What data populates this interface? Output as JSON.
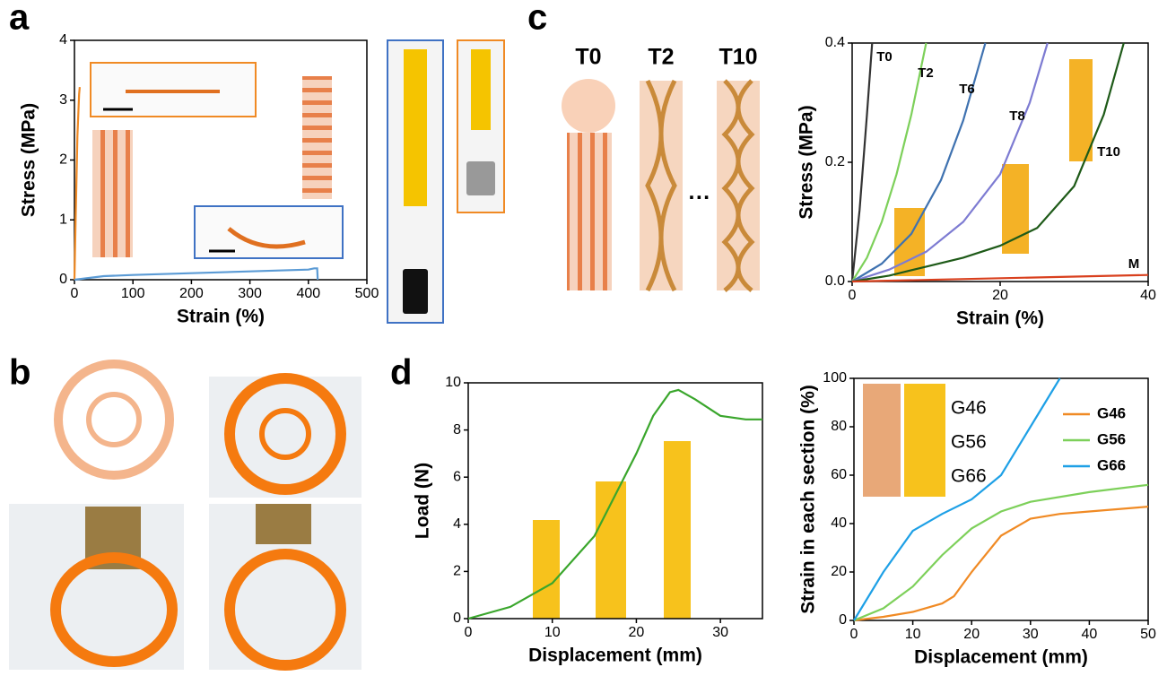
{
  "panel_labels": [
    "a",
    "b",
    "c",
    "d"
  ],
  "schematic_labels": [
    "T0",
    "T2",
    "T10"
  ],
  "ellipsis": "···",
  "inset_labels": [
    "G46",
    "G56",
    "G66"
  ],
  "chart_data": [
    {
      "type": "line",
      "xlabel": "Strain (%)",
      "ylabel": "Stress (MPa)",
      "xlim": [
        0,
        500
      ],
      "xticks": [
        0,
        100,
        200,
        300,
        400,
        500
      ],
      "ylim": [
        0,
        4
      ],
      "yticks": [
        0,
        1,
        2,
        3,
        4
      ],
      "series": [
        {
          "color": "#f08a24",
          "x": [
            0,
            2,
            5,
            8,
            9
          ],
          "values": [
            0,
            1.0,
            2.4,
            3.1,
            3.22
          ]
        },
        {
          "color": "#5b9bd5",
          "x": [
            0,
            50,
            100,
            200,
            300,
            400,
            410,
            415,
            416
          ],
          "values": [
            0,
            0.06,
            0.08,
            0.11,
            0.14,
            0.17,
            0.19,
            0.19,
            0
          ]
        }
      ]
    },
    {
      "type": "line",
      "xlabel": "Strain (%)",
      "ylabel": "Stress (MPa)",
      "xlim": [
        0,
        40
      ],
      "xticks": [
        0,
        20,
        40
      ],
      "ylim": [
        0,
        0.4
      ],
      "yticks": [
        {
          "value": 0,
          "label": "0.0"
        },
        0.2,
        0.4
      ],
      "direct_labels": true,
      "series": [
        {
          "name": "T0",
          "color": "#333333",
          "x": [
            0,
            1,
            2,
            2.7
          ],
          "values": [
            0,
            0.12,
            0.28,
            0.4
          ]
        },
        {
          "name": "T2",
          "color": "#7dd05a",
          "x": [
            0,
            2,
            4,
            6,
            8,
            10
          ],
          "values": [
            0,
            0.04,
            0.1,
            0.18,
            0.28,
            0.4
          ]
        },
        {
          "name": "T6",
          "color": "#3f72b0",
          "x": [
            0,
            4,
            8,
            12,
            15,
            18
          ],
          "values": [
            0,
            0.03,
            0.08,
            0.17,
            0.27,
            0.4
          ]
        },
        {
          "name": "T8",
          "color": "#7d7bd2",
          "x": [
            0,
            5,
            10,
            15,
            20,
            24,
            26.4
          ],
          "values": [
            0,
            0.02,
            0.05,
            0.1,
            0.18,
            0.3,
            0.4
          ]
        },
        {
          "name": "T10",
          "color": "#1e5a18",
          "x": [
            0,
            5,
            10,
            15,
            20,
            25,
            30,
            34,
            36.7
          ],
          "values": [
            0,
            0.01,
            0.025,
            0.04,
            0.06,
            0.09,
            0.16,
            0.28,
            0.4
          ]
        },
        {
          "name": "M",
          "color": "#d9401e",
          "x": [
            0,
            40
          ],
          "values": [
            0,
            0.011
          ]
        }
      ]
    },
    {
      "type": "line",
      "xlabel": "Displacement (mm)",
      "ylabel": "Load (N)",
      "xlim": [
        0,
        35
      ],
      "xticks": [
        0,
        10,
        20,
        30
      ],
      "ylim": [
        0,
        10
      ],
      "yticks": [
        0,
        2,
        4,
        6,
        8,
        10
      ],
      "series": [
        {
          "color": "#3aa62c",
          "x": [
            0,
            5,
            10,
            15,
            20,
            22,
            24,
            25,
            27,
            30,
            33,
            35
          ],
          "values": [
            0,
            0.5,
            1.5,
            3.5,
            7,
            8.6,
            9.6,
            9.7,
            9.3,
            8.6,
            8.45,
            8.45
          ]
        }
      ]
    },
    {
      "type": "line",
      "xlabel": "Displacement (mm)",
      "ylabel": "Strain in each section (%)",
      "xlim": [
        0,
        50
      ],
      "xticks": [
        0,
        10,
        20,
        30,
        40,
        50
      ],
      "ylim": [
        0,
        100
      ],
      "yticks": [
        0,
        20,
        40,
        60,
        80,
        100
      ],
      "legend": "right",
      "series": [
        {
          "name": "G46",
          "color": "#f08a24",
          "x": [
            0,
            5,
            10,
            15,
            17,
            20,
            25,
            30,
            35,
            40,
            50
          ],
          "values": [
            0,
            1.5,
            3.5,
            7,
            10,
            20,
            35,
            42,
            44,
            45,
            47
          ]
        },
        {
          "name": "G56",
          "color": "#7dd05a",
          "x": [
            0,
            5,
            10,
            15,
            20,
            25,
            30,
            40,
            50
          ],
          "values": [
            0,
            5,
            14,
            27,
            38,
            45,
            49,
            53,
            56
          ]
        },
        {
          "name": "G66",
          "color": "#1ea0e6",
          "x": [
            0,
            5,
            10,
            15,
            20,
            25,
            30,
            35
          ],
          "values": [
            0,
            20,
            37,
            44,
            50,
            60,
            80,
            100
          ]
        }
      ]
    }
  ]
}
